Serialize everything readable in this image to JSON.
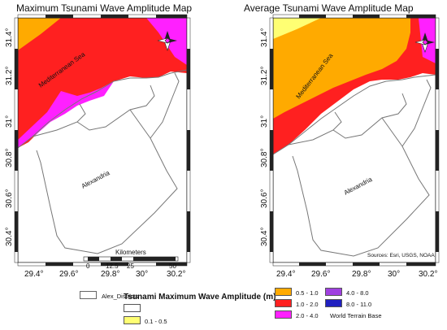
{
  "maps": [
    {
      "title": "Maximum Tsunami Wave Amplitude Map",
      "sea_label": "Mediterranean Sea",
      "district_label": "Alexandria",
      "x_ticks": [
        "29.4°",
        "29.6°",
        "29.8°",
        "30°",
        "30.2°"
      ],
      "y_ticks": [
        "31.4°",
        "31.2°",
        "31°",
        "30.8°",
        "30.6°",
        "30.4°"
      ],
      "scale_bar": {
        "title": "Kilometers",
        "labels": [
          "0",
          "12.5",
          "25",
          "50"
        ]
      }
    },
    {
      "title": "Average Tsunami Wave Amplitude Map",
      "sea_label": "Mediterranean Sea",
      "district_label": "Alexandria",
      "x_ticks": [
        "29.4°",
        "29.6°",
        "29.8°",
        "30°",
        "30.2°"
      ],
      "y_ticks": [
        "31.4°",
        "31.2°",
        "31°",
        "30.8°",
        "30.6°",
        "30.4°"
      ],
      "sources": "Sources: Esri, USGS, NOAA"
    }
  ],
  "legend_left": {
    "district": "Alex_Districts",
    "title": "Tsunami Maximum Wave Amplitude (m)",
    "items": [
      {
        "label": "",
        "color": "#ffffff"
      },
      {
        "label": "0.1 - 0.5",
        "color": "#ffff73"
      }
    ]
  },
  "legend_right": {
    "items": [
      {
        "label": "0.5 - 1.0",
        "color": "#ffaa00"
      },
      {
        "label": "1.0 - 2.0",
        "color": "#ff2020"
      },
      {
        "label": "2.0 - 4.0",
        "color": "#ff20ff"
      },
      {
        "label": "4.0 - 8.0",
        "color": "#a040e0"
      },
      {
        "label": "8.0 - 11.0",
        "color": "#2020c0"
      }
    ],
    "base": "World Terrain Base"
  }
}
